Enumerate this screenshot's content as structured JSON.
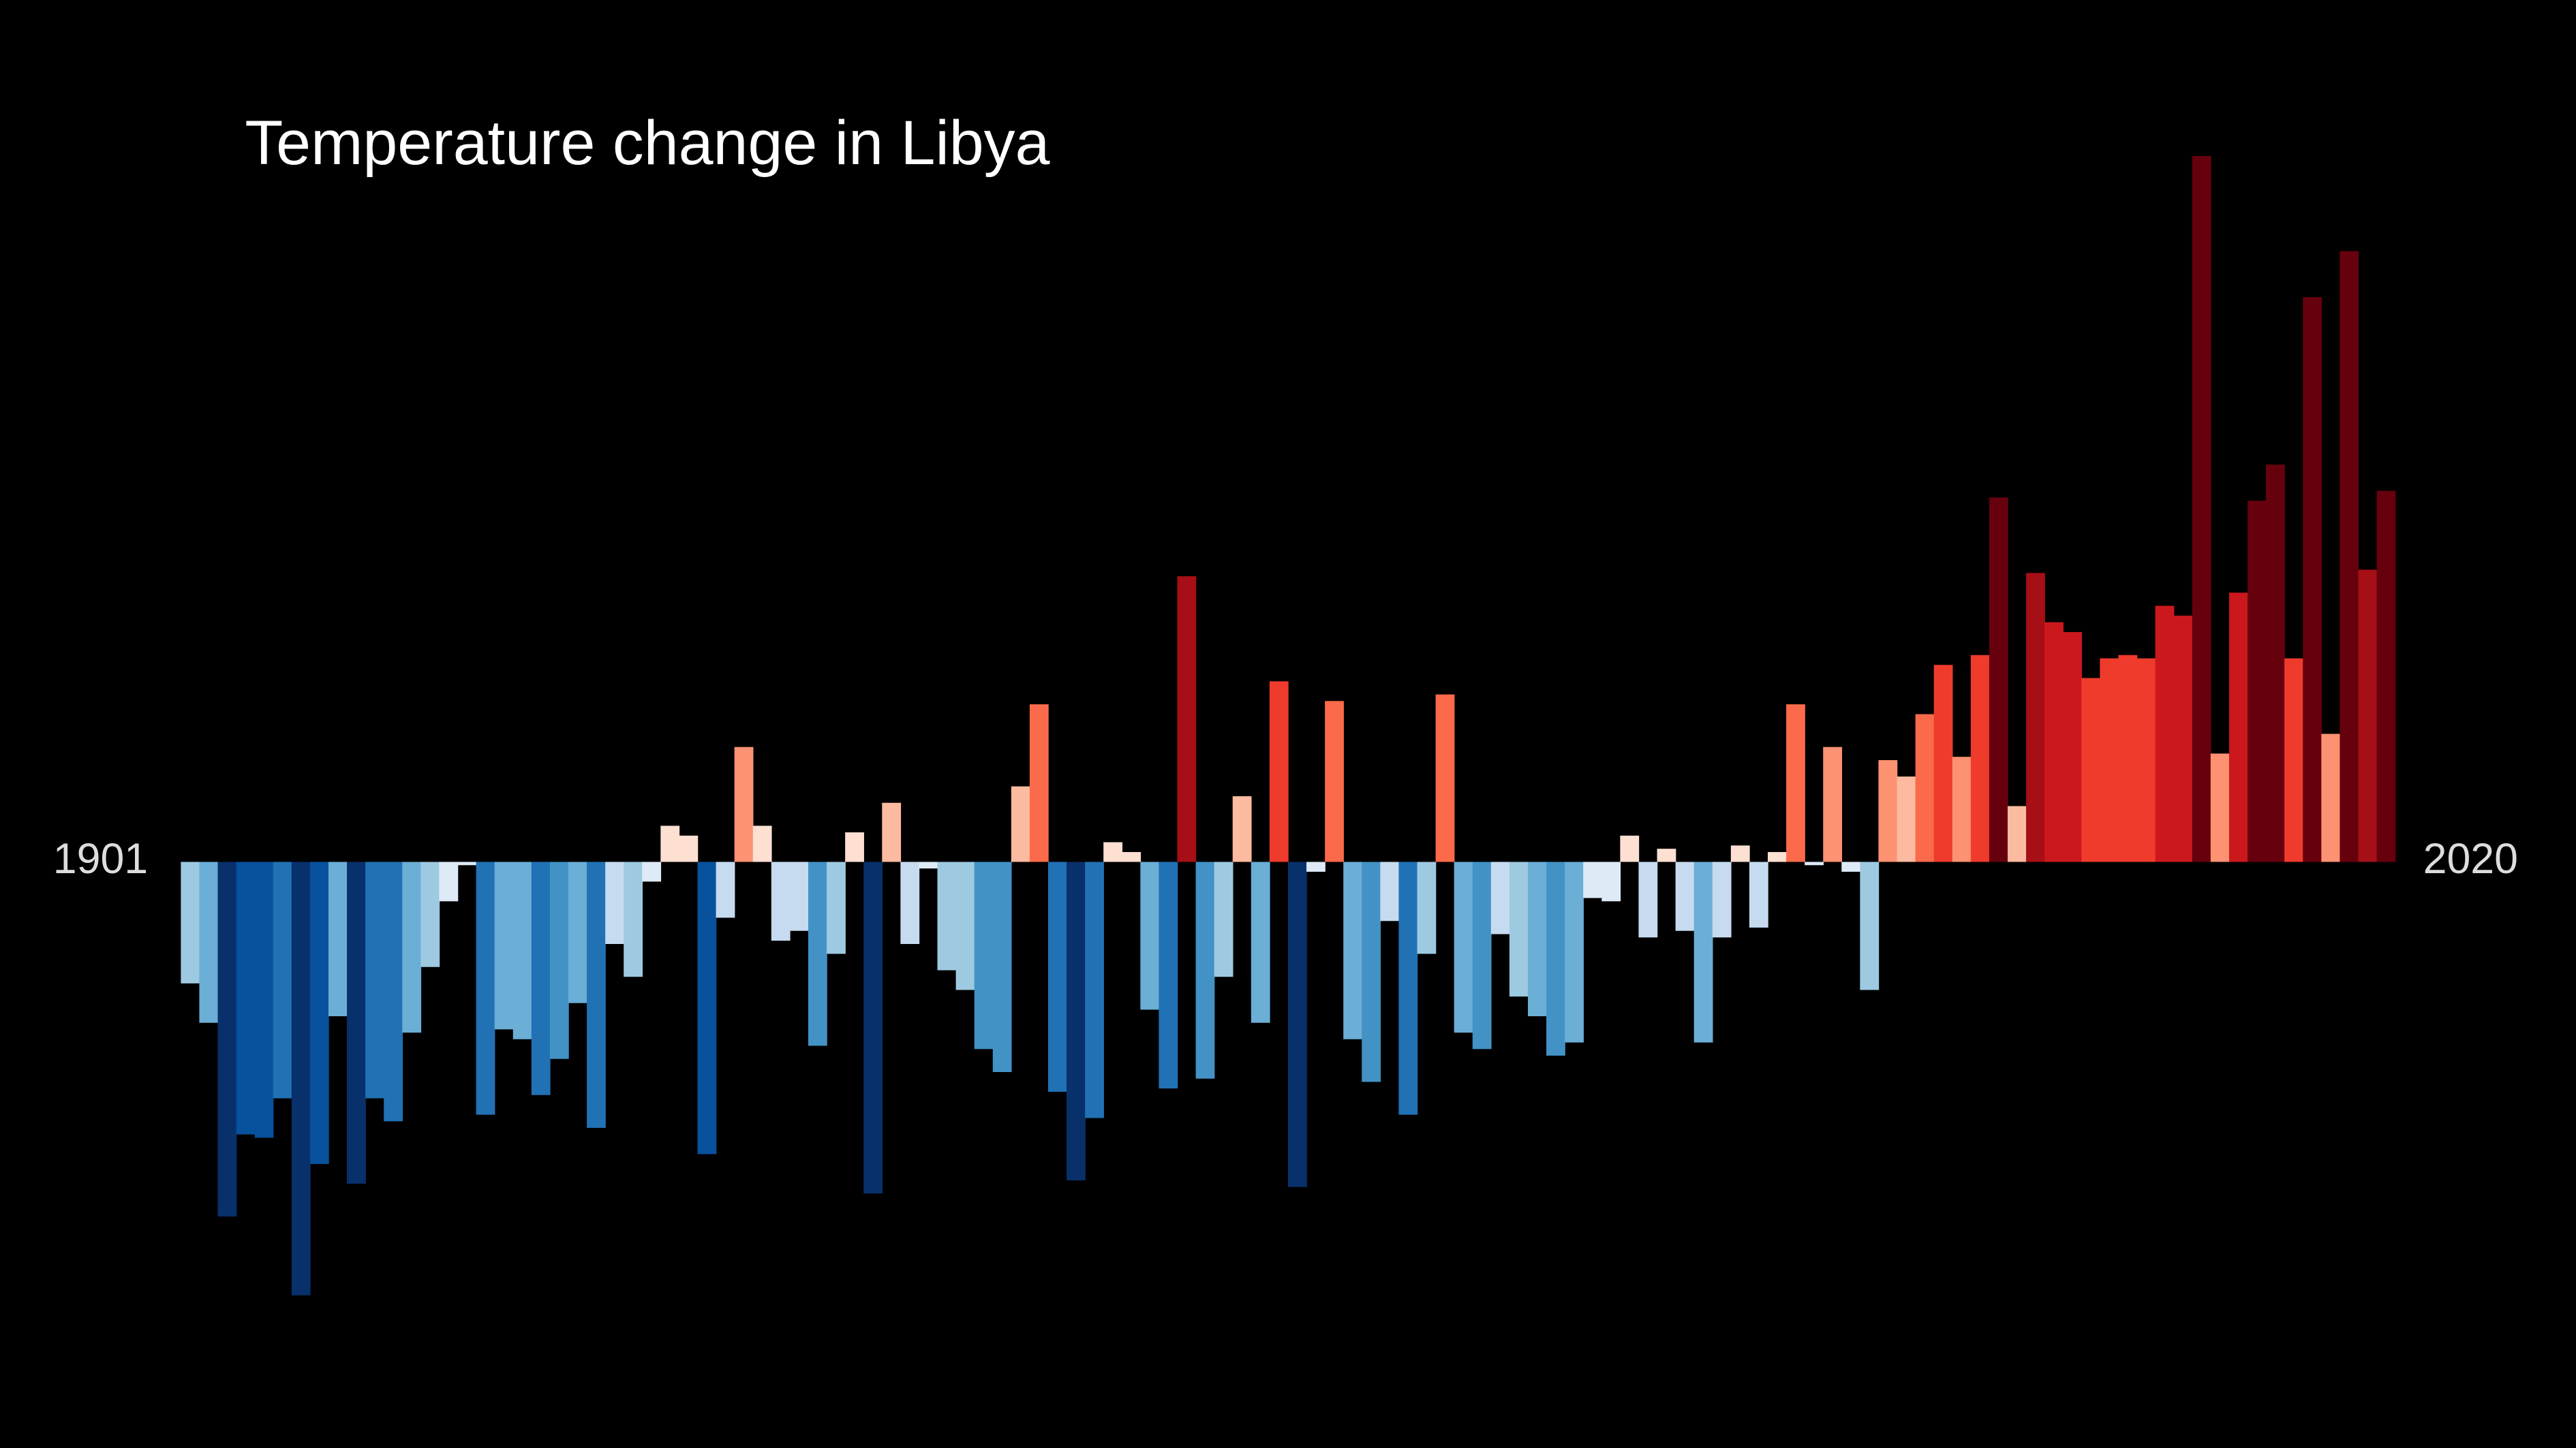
{
  "chart_data": {
    "type": "bar",
    "title": "Temperature change in Libya",
    "categories": [
      "1901",
      null,
      null,
      null,
      null,
      null,
      null,
      null,
      null,
      null,
      null,
      null,
      null,
      null,
      null,
      null,
      null,
      null,
      null,
      null,
      null,
      null,
      null,
      null,
      null,
      null,
      null,
      null,
      null,
      null,
      null,
      null,
      null,
      null,
      null,
      null,
      null,
      null,
      null,
      null,
      null,
      null,
      null,
      null,
      null,
      null,
      null,
      null,
      null,
      null,
      null,
      null,
      null,
      null,
      null,
      null,
      null,
      null,
      null,
      null,
      null,
      null,
      null,
      null,
      null,
      null,
      null,
      null,
      null,
      null,
      null,
      null,
      null,
      null,
      null,
      null,
      null,
      null,
      null,
      null,
      null,
      null,
      null,
      null,
      null,
      null,
      null,
      null,
      null,
      null,
      null,
      null,
      null,
      null,
      null,
      null,
      null,
      null,
      null,
      null,
      null,
      null,
      null,
      null,
      null,
      null,
      null,
      null,
      null,
      null,
      null,
      null,
      null,
      null,
      null,
      null,
      null,
      null,
      null,
      "2020"
    ],
    "values": [
      -0.37,
      -0.49,
      -1.08,
      -0.83,
      -0.84,
      -0.72,
      -1.32,
      -0.92,
      -0.47,
      -0.98,
      -0.72,
      -0.79,
      -0.52,
      -0.32,
      -0.12,
      -0.01,
      -0.77,
      -0.51,
      -0.54,
      -0.71,
      -0.6,
      -0.43,
      -0.81,
      -0.25,
      -0.35,
      -0.06,
      0.11,
      0.08,
      -0.89,
      -0.17,
      0.35,
      0.11,
      -0.24,
      -0.21,
      -0.56,
      -0.28,
      0.09,
      -1.01,
      0.18,
      -0.25,
      -0.02,
      -0.33,
      -0.39,
      -0.57,
      -0.64,
      0.23,
      0.48,
      -0.7,
      -0.97,
      -0.78,
      0.06,
      0.03,
      -0.45,
      -0.69,
      0.87,
      -0.66,
      -0.35,
      0.2,
      -0.49,
      0.55,
      -0.99,
      -0.03,
      0.49,
      -0.54,
      -0.67,
      -0.18,
      -0.77,
      -0.28,
      0.51,
      -0.52,
      -0.57,
      -0.22,
      -0.41,
      -0.47,
      -0.59,
      -0.55,
      -0.11,
      -0.12,
      0.08,
      -0.23,
      0.04,
      -0.21,
      -0.55,
      -0.23,
      0.05,
      -0.2,
      0.03,
      0.48,
      -0.01,
      0.35,
      -0.03,
      -0.39,
      0.31,
      0.26,
      0.45,
      0.6,
      0.32,
      0.63,
      1.11,
      0.17,
      0.88,
      0.73,
      0.7,
      0.56,
      0.62,
      0.63,
      0.62,
      0.78,
      0.75,
      2.15,
      0.33,
      0.82,
      1.1,
      1.21,
      0.62,
      1.72,
      0.39,
      1.86,
      0.89,
      1.13
    ],
    "palette": [
      "#08306b",
      "#08519c",
      "#2171b5",
      "#4292c6",
      "#6baed6",
      "#9ecae1",
      "#c6dbef",
      "#deebf7",
      "#fee0d2",
      "#fcbba1",
      "#fc9272",
      "#fb6a4a",
      "#ef3b2c",
      "#cb181d",
      "#a50f15",
      "#67000d"
    ],
    "color_range": [
      -1.1,
      1.1
    ],
    "ylim": [
      -1.7,
      2.4
    ]
  }
}
